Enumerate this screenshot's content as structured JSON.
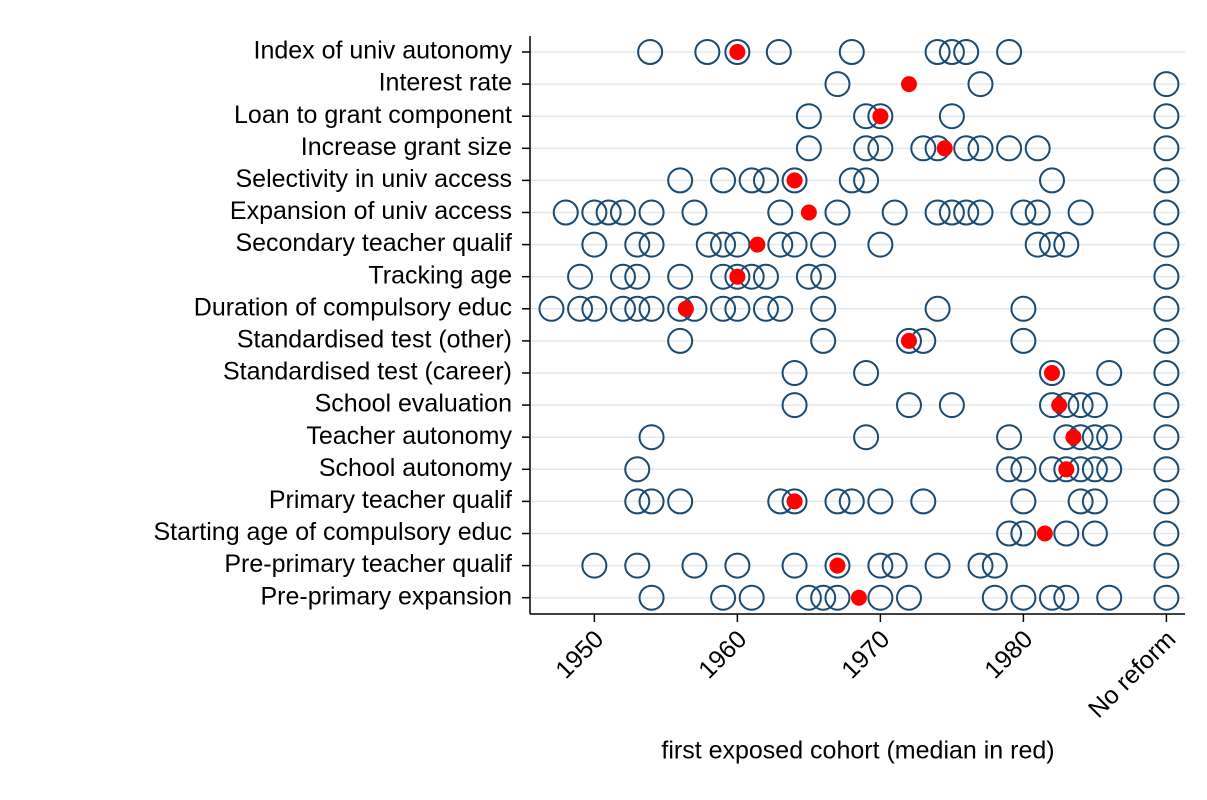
{
  "chart_data": {
    "type": "dotplot",
    "xlabel": "first exposed cohort (median in red)",
    "categories": [
      "Index of univ autonomy",
      "Interest rate",
      "Loan to grant component",
      "Increase grant size",
      "Selectivity in univ access",
      "Expansion of univ access",
      "Secondary teacher qualif",
      "Tracking age",
      "Duration of compulsory educ",
      "Standardised test (other)",
      "Standardised test (career)",
      "School evaluation",
      "Teacher autonomy",
      "School autonomy",
      "Primary teacher qualif",
      "Starting age of compulsory educ",
      "Pre-primary teacher qualif",
      "Pre-primary expansion"
    ],
    "points": [
      [
        1953.9,
        1957.9,
        1960,
        1962.9,
        1968,
        1974,
        1975,
        1976,
        1979
      ],
      [
        1967,
        1977,
        1990
      ],
      [
        1965,
        1969,
        1970,
        1975,
        1990
      ],
      [
        1965,
        1969,
        1970,
        1973,
        1974,
        1976,
        1977,
        1979,
        1981,
        1990
      ],
      [
        1956,
        1959,
        1961,
        1962,
        1964,
        1968,
        1969,
        1982,
        1990
      ],
      [
        1948,
        1950,
        1951,
        1952,
        1954,
        1957,
        1963,
        1967,
        1971,
        1974,
        1975,
        1976,
        1977,
        1980,
        1981,
        1984,
        1990
      ],
      [
        1950,
        1953,
        1954,
        1958,
        1959,
        1960,
        1963,
        1964,
        1966,
        1970,
        1981,
        1982,
        1983,
        1990
      ],
      [
        1949,
        1952,
        1953,
        1956,
        1959,
        1960,
        1961,
        1962,
        1965,
        1966,
        1990
      ],
      [
        1947,
        1949,
        1950,
        1952,
        1953,
        1954,
        1956,
        1957,
        1959,
        1960,
        1962,
        1963,
        1966,
        1974,
        1980,
        1990
      ],
      [
        1956,
        1966,
        1972,
        1973,
        1980,
        1990
      ],
      [
        1964,
        1969,
        1982,
        1986,
        1990
      ],
      [
        1964,
        1972,
        1975,
        1982,
        1983,
        1984,
        1985,
        1990
      ],
      [
        1954,
        1969,
        1979,
        1983,
        1984,
        1985,
        1986,
        1990
      ],
      [
        1953,
        1979,
        1980,
        1982,
        1983,
        1984,
        1985,
        1986,
        1990
      ],
      [
        1953,
        1954,
        1956,
        1963,
        1964,
        1967,
        1968,
        1970,
        1973,
        1980,
        1984,
        1985,
        1990
      ],
      [
        1979,
        1980,
        1983,
        1985,
        1990
      ],
      [
        1950,
        1953,
        1957,
        1960,
        1964,
        1967,
        1970,
        1971,
        1974,
        1977,
        1978,
        1990
      ],
      [
        1954,
        1959,
        1961,
        1965,
        1966,
        1967,
        1970,
        1972,
        1978,
        1980,
        1982,
        1983,
        1986,
        1990
      ]
    ],
    "medians": [
      1960,
      1972,
      1970,
      1974.5,
      1964,
      1965,
      1961.4,
      1960,
      1956.4,
      1972,
      1982,
      1982.5,
      1983.5,
      1983,
      1964,
      1981.5,
      1967,
      1968.5
    ],
    "color": "#1a4a72",
    "median_color": "#ff0000",
    "grid": true,
    "xlim": [
      1945.5,
      1991.3
    ],
    "xticks": [
      1950,
      1960,
      1970,
      1980,
      {
        "value": 1990,
        "label": "No reform"
      }
    ]
  }
}
